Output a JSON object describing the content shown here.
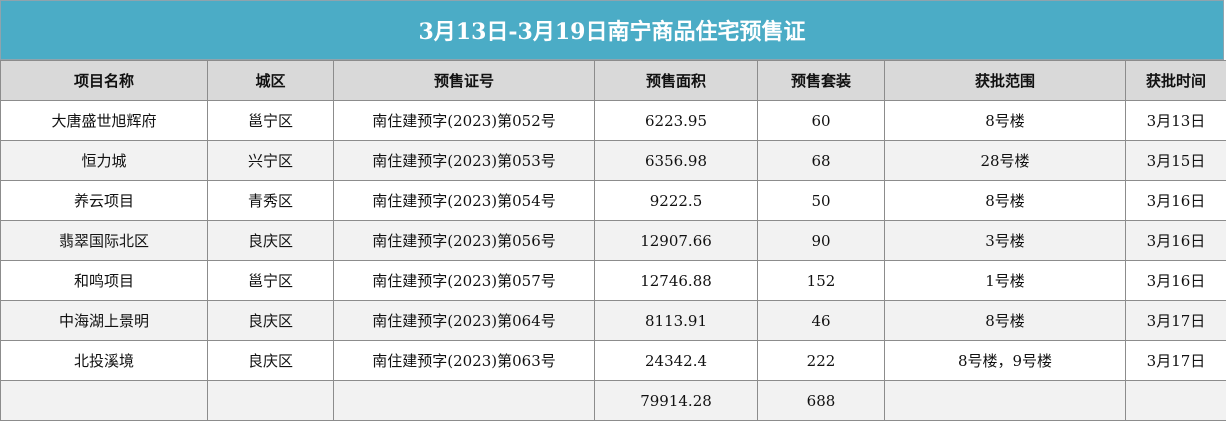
{
  "header": {
    "title": "3月13日-3月19日南宁商品住宅预售证"
  },
  "table": {
    "columns": [
      "项目名称",
      "城区",
      "预售证号",
      "预售面积",
      "预售套装",
      "获批范围",
      "获批时间"
    ],
    "rows": [
      [
        "大唐盛世旭辉府",
        "邕宁区",
        "南住建预字(2023)第052号",
        "6223.95",
        "60",
        "8号楼",
        "3月13日"
      ],
      [
        "恒力城",
        "兴宁区",
        "南住建预字(2023)第053号",
        "6356.98",
        "68",
        "28号楼",
        "3月15日"
      ],
      [
        "养云项目",
        "青秀区",
        "南住建预字(2023)第054号",
        "9222.5",
        "50",
        "8号楼",
        "3月16日"
      ],
      [
        "翡翠国际北区",
        "良庆区",
        "南住建预字(2023)第056号",
        "12907.66",
        "90",
        "3号楼",
        "3月16日"
      ],
      [
        "和鸣项目",
        "邕宁区",
        "南住建预字(2023)第057号",
        "12746.88",
        "152",
        "1号楼",
        "3月16日"
      ],
      [
        "中海湖上景明",
        "良庆区",
        "南住建预字(2023)第064号",
        "8113.91",
        "46",
        "8号楼",
        "3月17日"
      ],
      [
        "北投溪境",
        "良庆区",
        "南住建预字(2023)第063号",
        "24342.4",
        "222",
        "8号楼，9号楼",
        "3月17日"
      ]
    ],
    "total": {
      "area": "79914.28",
      "units": "688"
    }
  }
}
